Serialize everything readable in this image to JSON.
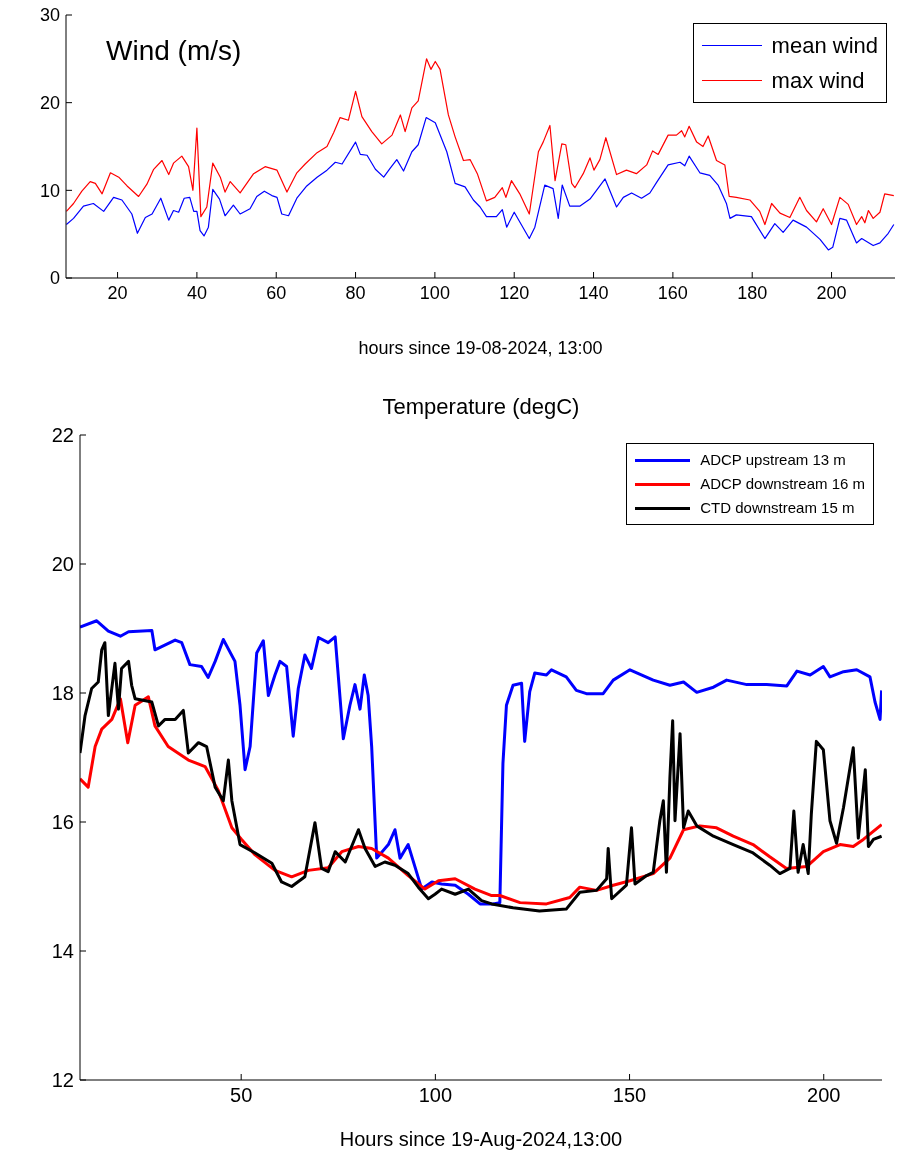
{
  "chart_data": [
    {
      "type": "line",
      "title": "Wind (m/s)",
      "xlabel": "hours since 19-08-2024, 13:00",
      "xlim": [
        7,
        216
      ],
      "xticks": [
        20,
        40,
        60,
        80,
        100,
        120,
        140,
        160,
        180,
        200
      ],
      "ylim": [
        0,
        30
      ],
      "yticks": [
        0,
        10,
        20,
        30
      ],
      "legend": "top right",
      "series": [
        {
          "name": "mean wind",
          "color": "#0000ff",
          "x": [
            7.1,
            8.9,
            11.4,
            13.9,
            16.5,
            19,
            21.1,
            23.6,
            25,
            27,
            28.7,
            30.9,
            32.9,
            34.1,
            35.4,
            36.8,
            38.2,
            39.2,
            40,
            40.8,
            41.8,
            42.9,
            44,
            45.7,
            47.1,
            49.2,
            50.9,
            53.4,
            55.1,
            57,
            58.9,
            60.2,
            61.4,
            63.1,
            65.2,
            67.7,
            70.3,
            72.8,
            74.9,
            76.6,
            80,
            81.2,
            82.9,
            85,
            87.1,
            88.7,
            90.4,
            92.1,
            94.2,
            95.8,
            97.8,
            100.1,
            103,
            105.1,
            107.6,
            109.7,
            111.4,
            113,
            115.5,
            117,
            118.1,
            120,
            123.8,
            125.2,
            127.7,
            129.8,
            131.1,
            132.1,
            134,
            136.6,
            139.1,
            142.9,
            145.8,
            147.5,
            149.6,
            152.1,
            154.2,
            155.9,
            158.8,
            161.8,
            163,
            164.1,
            166.8,
            169.3,
            171.4,
            173.5,
            174.4,
            176,
            179.8,
            183.2,
            185.7,
            187.8,
            190.3,
            193.7,
            197.1,
            199.2,
            200.3,
            202.1,
            203.8,
            206.3,
            207.6,
            210.5,
            212.2,
            214.3,
            215.7
          ],
          "values": [
            6.1,
            6.8,
            8.2,
            8.5,
            7.6,
            9.2,
            8.9,
            7.3,
            5.1,
            6.9,
            7.3,
            9.1,
            6.6,
            7.7,
            7.5,
            9.1,
            9.2,
            7.6,
            7.6,
            5.4,
            4.8,
            5.8,
            10.1,
            9.0,
            7.1,
            8.3,
            7.3,
            7.9,
            9.3,
            9.9,
            9.4,
            9.2,
            7.3,
            7.1,
            9.1,
            10.5,
            11.5,
            12.3,
            13.2,
            13.0,
            15.5,
            14.1,
            14.0,
            12.4,
            11.5,
            12.5,
            13.5,
            12.2,
            14.4,
            15.2,
            18.3,
            17.7,
            14.4,
            10.8,
            10.4,
            8.9,
            8.1,
            7.0,
            7.0,
            7.8,
            5.8,
            7.5,
            4.5,
            5.8,
            10.6,
            10.2,
            6.8,
            10.6,
            8.2,
            8.2,
            9.0,
            11.3,
            8.1,
            9.2,
            9.7,
            9.1,
            9.7,
            10.9,
            12.9,
            13.2,
            12.8,
            13.9,
            12.0,
            11.7,
            10.6,
            8.5,
            6.8,
            7.2,
            7.0,
            4.5,
            6.2,
            5.2,
            6.6,
            5.8,
            4.4,
            3.2,
            3.5,
            6.8,
            6.6,
            4.0,
            4.5,
            3.7,
            4.0,
            5.1,
            6.1
          ]
        },
        {
          "name": "max wind",
          "color": "#ff0000",
          "x": [
            7.1,
            8.9,
            11,
            13.1,
            14.4,
            16.1,
            18.2,
            20.3,
            22.4,
            25.3,
            27.4,
            29.1,
            31.2,
            32.9,
            34.1,
            36.2,
            37.9,
            39,
            40,
            41,
            42.5,
            44,
            45.9,
            47.1,
            48.4,
            50.9,
            54.3,
            57.2,
            60.2,
            62.7,
            65.2,
            67.3,
            70.3,
            72.8,
            74.5,
            76.1,
            78.2,
            80,
            81.6,
            84.1,
            86.6,
            89.2,
            91.3,
            92.5,
            94.2,
            95.8,
            97.9,
            99,
            100.1,
            101.3,
            103.4,
            105.1,
            107.2,
            108.9,
            110.7,
            113,
            115.1,
            117,
            117.9,
            119.3,
            121.4,
            123.8,
            126.1,
            127.3,
            129,
            130.3,
            132,
            133,
            134.5,
            135.3,
            137.4,
            139.1,
            140.1,
            141.6,
            143.1,
            145.8,
            148.3,
            150.8,
            153.4,
            154.9,
            156.3,
            158.8,
            160.9,
            162.2,
            163,
            164.1,
            166,
            167.6,
            168.9,
            171,
            173.1,
            174.2,
            176,
            179.4,
            181.9,
            183.2,
            184.9,
            187,
            189.5,
            192,
            193.7,
            196.2,
            197.9,
            200,
            202.1,
            204.2,
            206.3,
            207.6,
            208.4,
            209.3,
            210.5,
            212.2,
            213.4,
            215.7
          ],
          "values": [
            7.6,
            8.5,
            9.9,
            11.0,
            10.8,
            9.6,
            12.0,
            11.5,
            10.5,
            9.3,
            10.7,
            12.4,
            13.4,
            11.8,
            13.1,
            13.9,
            12.7,
            10.0,
            17.1,
            7.0,
            8.1,
            13.1,
            11.5,
            9.8,
            11.0,
            9.7,
            11.9,
            12.7,
            12.3,
            9.8,
            12.0,
            13.0,
            14.3,
            15.0,
            16.6,
            18.3,
            18.0,
            21.3,
            18.4,
            16.7,
            15.3,
            16.3,
            18.6,
            16.7,
            19.4,
            20.2,
            25.0,
            23.8,
            24.7,
            23.8,
            18.6,
            16.1,
            13.4,
            13.5,
            11.9,
            8.8,
            9.2,
            10.3,
            9.2,
            11.1,
            9.6,
            7.3,
            14.4,
            15.5,
            17.4,
            11.1,
            15.3,
            15.2,
            10.8,
            10.3,
            11.9,
            13.7,
            12.3,
            13.5,
            16.0,
            11.8,
            12.3,
            11.9,
            12.9,
            14.5,
            14.1,
            16.3,
            16.3,
            16.8,
            16.1,
            17.3,
            15.5,
            15.0,
            16.2,
            13.4,
            12.9,
            9.3,
            9.2,
            8.9,
            7.6,
            6.1,
            8.5,
            7.4,
            6.9,
            9.2,
            7.7,
            6.4,
            7.9,
            6.1,
            9.2,
            8.4,
            6.1,
            7.0,
            6.3,
            7.7,
            6.8,
            7.5,
            9.6,
            9.4
          ]
        }
      ]
    },
    {
      "type": "line",
      "title": "Temperature (degC)",
      "xlabel": "Hours since 19-Aug-2024,13:00",
      "xlim": [
        8.5,
        215
      ],
      "xticks": [
        50,
        100,
        150,
        200
      ],
      "ylim": [
        12,
        22
      ],
      "yticks": [
        12,
        14,
        16,
        18,
        20,
        22
      ],
      "legend": "top right",
      "series": [
        {
          "name": "ADCP upstream 13 m",
          "color": "#0000ff",
          "x": [
            8.5,
            12.8,
            15.8,
            18.9,
            21,
            27,
            27.8,
            33,
            34.7,
            36.8,
            39.8,
            41.5,
            43.3,
            45.4,
            48.4,
            49.7,
            51,
            52.3,
            54,
            55.7,
            57,
            58.7,
            60,
            61.7,
            63.4,
            64.7,
            66.4,
            68.1,
            69.9,
            72.4,
            74.2,
            76.3,
            78,
            79.3,
            80.6,
            81.7,
            82.7,
            83.6,
            84.9,
            87.9,
            89.6,
            90.9,
            93,
            96.5,
            99.1,
            101.6,
            105.1,
            108.5,
            111.5,
            114.9,
            116.6,
            117.4,
            118.3,
            120,
            122.2,
            123,
            124.3,
            125.6,
            128.6,
            129.9,
            133.7,
            136.3,
            138.9,
            143.2,
            145.8,
            150.1,
            156.1,
            160.4,
            163.9,
            167.3,
            171.6,
            175,
            180.2,
            185.3,
            190.5,
            193.1,
            196.5,
            199.9,
            201.6,
            205.1,
            208.5,
            211.9,
            213.2,
            214.5,
            214.9
          ],
          "values": [
            19.02,
            19.12,
            18.96,
            18.88,
            18.95,
            18.97,
            18.67,
            18.82,
            18.78,
            18.44,
            18.41,
            18.24,
            18.49,
            18.83,
            18.49,
            17.81,
            16.81,
            17.17,
            18.62,
            18.81,
            17.96,
            18.28,
            18.49,
            18.41,
            17.33,
            18.07,
            18.59,
            18.38,
            18.86,
            18.78,
            18.87,
            17.29,
            17.81,
            18.13,
            17.75,
            18.28,
            17.96,
            17.17,
            15.44,
            15.65,
            15.88,
            15.44,
            15.65,
            14.96,
            15.07,
            15.04,
            15.02,
            14.88,
            14.73,
            14.73,
            14.75,
            16.91,
            17.81,
            18.12,
            18.15,
            17.25,
            18.02,
            18.31,
            18.28,
            18.36,
            18.25,
            18.04,
            17.99,
            17.99,
            18.2,
            18.36,
            18.2,
            18.12,
            18.17,
            18.01,
            18.09,
            18.2,
            18.13,
            18.13,
            18.11,
            18.34,
            18.28,
            18.41,
            18.25,
            18.33,
            18.36,
            18.25,
            17.86,
            17.59,
            18.04
          ]
        },
        {
          "name": "ADCP downstream 16 m",
          "color": "#ff0000",
          "x": [
            8.5,
            10.6,
            12.4,
            14.1,
            16.7,
            18.9,
            20.8,
            22.7,
            26.1,
            27.8,
            31.2,
            36.4,
            40.7,
            44.1,
            47.6,
            50.1,
            53.6,
            58.7,
            63,
            67.3,
            72.4,
            75.9,
            80.2,
            83.6,
            87.9,
            93,
            97.3,
            100.8,
            105.1,
            110.2,
            114.5,
            116.6,
            121.8,
            128.6,
            134.6,
            137.2,
            141.5,
            145.8,
            150.1,
            156.1,
            160.4,
            163.9,
            168.1,
            172.4,
            176.7,
            181.8,
            186.1,
            190.4,
            195.6,
            199.9,
            204.2,
            207.6,
            210.2,
            214.9
          ],
          "values": [
            16.67,
            16.54,
            17.17,
            17.44,
            17.59,
            17.91,
            17.23,
            17.81,
            17.94,
            17.49,
            17.17,
            16.96,
            16.86,
            16.49,
            15.91,
            15.73,
            15.49,
            15.25,
            15.15,
            15.25,
            15.29,
            15.54,
            15.62,
            15.59,
            15.44,
            15.17,
            14.96,
            15.09,
            15.12,
            14.96,
            14.86,
            14.86,
            14.75,
            14.73,
            14.83,
            14.99,
            14.94,
            15.02,
            15.09,
            15.2,
            15.44,
            15.88,
            15.94,
            15.91,
            15.78,
            15.65,
            15.46,
            15.28,
            15.31,
            15.54,
            15.65,
            15.62,
            15.73,
            15.96
          ]
        },
        {
          "name": "CTD downstream 15 m",
          "color": "#000000",
          "x": [
            8.5,
            9.8,
            11.5,
            13.2,
            14.1,
            14.9,
            15.8,
            17.5,
            18.4,
            19.2,
            21,
            21.8,
            22.7,
            27,
            28.7,
            30.4,
            33,
            35.1,
            36.4,
            39,
            41.1,
            43.3,
            45.4,
            46.7,
            47.6,
            49.7,
            53.6,
            57.9,
            60.4,
            63,
            66.4,
            69,
            70.7,
            72.4,
            74.2,
            76.8,
            80.2,
            81.9,
            84.5,
            87,
            89.6,
            93,
            95.6,
            98.2,
            99.9,
            101.6,
            105.1,
            108.5,
            111.9,
            114.5,
            120,
            126.8,
            133.7,
            137.2,
            141.5,
            144.1,
            144.5,
            145.4,
            149.2,
            150.5,
            151.4,
            154.4,
            156.1,
            157.8,
            158.7,
            159.5,
            160.4,
            161.1,
            161.7,
            163,
            163.9,
            165.1,
            167.3,
            171.6,
            176.7,
            181.8,
            186.1,
            188.7,
            191.3,
            192.3,
            193.4,
            194.7,
            196,
            196.8,
            198.1,
            199.9,
            201.6,
            203.3,
            205.1,
            207.6,
            208.9,
            210.7,
            211.5,
            212.8,
            214.9
          ],
          "values": [
            17.07,
            17.65,
            18.07,
            18.17,
            18.67,
            18.78,
            17.65,
            18.46,
            17.75,
            18.38,
            18.49,
            18.12,
            17.91,
            17.86,
            17.49,
            17.59,
            17.59,
            17.73,
            17.07,
            17.23,
            17.17,
            16.54,
            16.33,
            16.96,
            16.33,
            15.65,
            15.52,
            15.36,
            15.07,
            15.0,
            15.15,
            15.99,
            15.28,
            15.23,
            15.54,
            15.38,
            15.88,
            15.59,
            15.31,
            15.38,
            15.33,
            15.2,
            14.99,
            14.81,
            14.88,
            14.96,
            14.88,
            14.96,
            14.78,
            14.73,
            14.67,
            14.62,
            14.65,
            14.91,
            14.94,
            15.12,
            15.59,
            14.81,
            15.02,
            15.91,
            15.04,
            15.17,
            15.22,
            16.02,
            16.33,
            15.22,
            16.7,
            17.57,
            16.02,
            17.37,
            15.91,
            16.17,
            15.94,
            15.78,
            15.65,
            15.52,
            15.33,
            15.2,
            15.28,
            16.17,
            15.22,
            15.65,
            15.2,
            16.12,
            17.25,
            17.12,
            16.02,
            15.67,
            16.23,
            17.15,
            15.75,
            16.81,
            15.62,
            15.73,
            15.78
          ]
        }
      ]
    }
  ]
}
